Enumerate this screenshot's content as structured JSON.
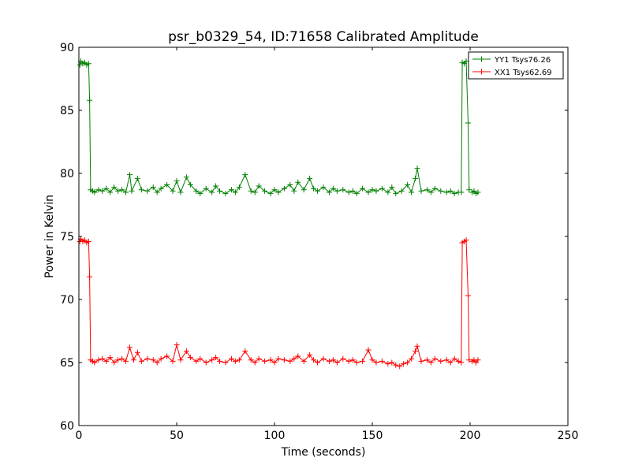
{
  "chart_data": {
    "type": "line",
    "title": "psr_b0329_54, ID:71658 Calibrated Amplitude",
    "xlabel": "Time (seconds)",
    "ylabel": "Power in Kelvin",
    "xlim": [
      0,
      250
    ],
    "ylim": [
      60,
      90
    ],
    "xticks": [
      0,
      50,
      100,
      150,
      200,
      250
    ],
    "yticks": [
      60,
      65,
      70,
      75,
      80,
      85,
      90
    ],
    "grid": false,
    "legend_position": "top-right",
    "marker": "+",
    "series": [
      {
        "name": "YY1 Tsys76.26",
        "color": "#008000",
        "segments": [
          {
            "points": [
              [
                0.5,
                88.6
              ],
              [
                1,
                88.9
              ],
              [
                2,
                88.7
              ],
              [
                3,
                88.8
              ],
              [
                4,
                88.6
              ],
              [
                5,
                88.7
              ],
              [
                5.5,
                85.8
              ],
              [
                6,
                78.7
              ],
              [
                7,
                78.6
              ],
              [
                8,
                78.5
              ],
              [
                10,
                78.7
              ],
              [
                12,
                78.6
              ],
              [
                14,
                78.8
              ],
              [
                16,
                78.5
              ],
              [
                18,
                78.9
              ],
              [
                20,
                78.6
              ],
              [
                22,
                78.7
              ],
              [
                24,
                78.5
              ],
              [
                26,
                79.9
              ],
              [
                27,
                78.6
              ],
              [
                30,
                79.6
              ],
              [
                32,
                78.7
              ],
              [
                35,
                78.6
              ],
              [
                38,
                78.9
              ],
              [
                40,
                78.5
              ],
              [
                42,
                78.8
              ],
              [
                45,
                79.1
              ],
              [
                48,
                78.6
              ],
              [
                50,
                79.4
              ],
              [
                52,
                78.5
              ],
              [
                55,
                79.7
              ],
              [
                57,
                79.1
              ],
              [
                60,
                78.6
              ],
              [
                62,
                78.4
              ],
              [
                65,
                78.8
              ],
              [
                68,
                78.5
              ],
              [
                70,
                79.0
              ],
              [
                72,
                78.6
              ],
              [
                75,
                78.4
              ],
              [
                78,
                78.7
              ],
              [
                80,
                78.5
              ],
              [
                82,
                78.9
              ],
              [
                85,
                79.9
              ],
              [
                88,
                78.6
              ],
              [
                90,
                78.5
              ],
              [
                92,
                79.0
              ],
              [
                95,
                78.6
              ],
              [
                98,
                78.4
              ],
              [
                100,
                78.7
              ],
              [
                102,
                78.5
              ],
              [
                105,
                78.8
              ],
              [
                108,
                79.1
              ],
              [
                110,
                78.6
              ],
              [
                112,
                79.3
              ],
              [
                115,
                78.7
              ],
              [
                118,
                79.6
              ],
              [
                120,
                78.8
              ],
              [
                122,
                78.6
              ],
              [
                125,
                78.9
              ],
              [
                128,
                78.5
              ],
              [
                130,
                78.8
              ],
              [
                132,
                78.6
              ],
              [
                135,
                78.7
              ],
              [
                138,
                78.5
              ],
              [
                140,
                78.6
              ],
              [
                142,
                78.4
              ],
              [
                145,
                78.8
              ],
              [
                148,
                78.5
              ],
              [
                150,
                78.7
              ],
              [
                152,
                78.6
              ],
              [
                155,
                78.8
              ],
              [
                158,
                78.5
              ],
              [
                160,
                78.9
              ],
              [
                162,
                78.4
              ],
              [
                165,
                78.6
              ],
              [
                168,
                79.1
              ],
              [
                170,
                78.5
              ],
              [
                172,
                79.6
              ],
              [
                173,
                80.4
              ],
              [
                175,
                78.6
              ],
              [
                178,
                78.7
              ],
              [
                180,
                78.5
              ],
              [
                182,
                78.8
              ],
              [
                185,
                78.6
              ],
              [
                188,
                78.5
              ],
              [
                190,
                78.6
              ],
              [
                192,
                78.4
              ],
              [
                194,
                78.5
              ],
              [
                195.5,
                78.5
              ],
              [
                196,
                88.8
              ],
              [
                197,
                88.7
              ],
              [
                198,
                88.9
              ],
              [
                199,
                84.0
              ],
              [
                199.5,
                78.7
              ]
            ]
          },
          {
            "points": [
              [
                201,
                78.5
              ],
              [
                202,
                78.6
              ],
              [
                203,
                78.4
              ],
              [
                204,
                78.5
              ]
            ]
          }
        ]
      },
      {
        "name": "XX1 Tsys62.69",
        "color": "#ff0000",
        "segments": [
          {
            "points": [
              [
                0.5,
                74.6
              ],
              [
                1,
                74.8
              ],
              [
                2,
                74.6
              ],
              [
                3,
                74.7
              ],
              [
                4,
                74.5
              ],
              [
                5,
                74.6
              ],
              [
                5.5,
                71.8
              ],
              [
                6,
                65.2
              ],
              [
                7,
                65.1
              ],
              [
                8,
                65.0
              ],
              [
                10,
                65.2
              ],
              [
                12,
                65.3
              ],
              [
                14,
                65.1
              ],
              [
                16,
                65.4
              ],
              [
                18,
                65.0
              ],
              [
                20,
                65.2
              ],
              [
                22,
                65.3
              ],
              [
                24,
                65.1
              ],
              [
                26,
                66.2
              ],
              [
                28,
                65.2
              ],
              [
                30,
                65.8
              ],
              [
                32,
                65.1
              ],
              [
                35,
                65.3
              ],
              [
                38,
                65.2
              ],
              [
                40,
                65.0
              ],
              [
                42,
                65.3
              ],
              [
                45,
                65.5
              ],
              [
                48,
                65.1
              ],
              [
                50,
                66.4
              ],
              [
                52,
                65.2
              ],
              [
                55,
                65.9
              ],
              [
                57,
                65.4
              ],
              [
                60,
                65.1
              ],
              [
                62,
                65.3
              ],
              [
                65,
                65.0
              ],
              [
                68,
                65.2
              ],
              [
                70,
                65.4
              ],
              [
                72,
                65.1
              ],
              [
                75,
                65.0
              ],
              [
                78,
                65.3
              ],
              [
                80,
                65.1
              ],
              [
                82,
                65.2
              ],
              [
                85,
                65.9
              ],
              [
                88,
                65.2
              ],
              [
                90,
                65.0
              ],
              [
                92,
                65.3
              ],
              [
                95,
                65.1
              ],
              [
                98,
                65.2
              ],
              [
                100,
                65.0
              ],
              [
                102,
                65.3
              ],
              [
                105,
                65.2
              ],
              [
                108,
                65.1
              ],
              [
                110,
                65.3
              ],
              [
                112,
                65.5
              ],
              [
                115,
                65.1
              ],
              [
                118,
                65.6
              ],
              [
                120,
                65.2
              ],
              [
                122,
                65.0
              ],
              [
                125,
                65.3
              ],
              [
                128,
                65.1
              ],
              [
                130,
                65.2
              ],
              [
                132,
                65.0
              ],
              [
                135,
                65.3
              ],
              [
                138,
                65.1
              ],
              [
                140,
                65.2
              ],
              [
                142,
                65.0
              ],
              [
                145,
                65.1
              ],
              [
                148,
                66.0
              ],
              [
                150,
                65.2
              ],
              [
                152,
                65.0
              ],
              [
                155,
                65.1
              ],
              [
                158,
                64.9
              ],
              [
                160,
                65.0
              ],
              [
                162,
                64.8
              ],
              [
                164,
                64.7
              ],
              [
                166,
                64.9
              ],
              [
                168,
                65.0
              ],
              [
                170,
                65.3
              ],
              [
                172,
                65.9
              ],
              [
                173,
                66.3
              ],
              [
                175,
                65.1
              ],
              [
                178,
                65.2
              ],
              [
                180,
                65.0
              ],
              [
                182,
                65.3
              ],
              [
                185,
                65.1
              ],
              [
                188,
                65.2
              ],
              [
                190,
                65.0
              ],
              [
                192,
                65.3
              ],
              [
                194,
                65.1
              ],
              [
                195.5,
                65.0
              ],
              [
                196,
                74.5
              ],
              [
                197,
                74.6
              ],
              [
                198,
                74.7
              ],
              [
                199,
                70.3
              ],
              [
                199.5,
                65.2
              ]
            ]
          },
          {
            "points": [
              [
                201,
                65.1
              ],
              [
                202,
                65.2
              ],
              [
                203,
                65.0
              ],
              [
                204,
                65.2
              ]
            ]
          }
        ]
      }
    ]
  }
}
